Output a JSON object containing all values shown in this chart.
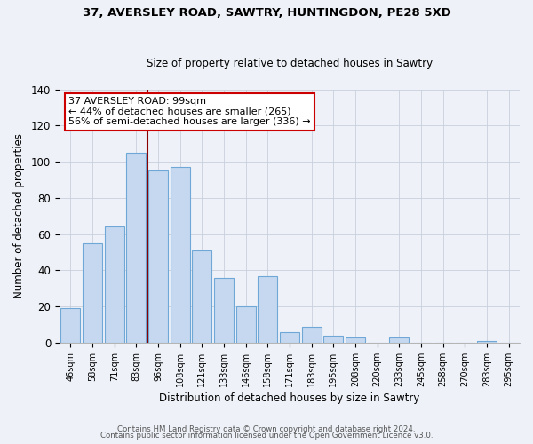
{
  "title1": "37, AVERSLEY ROAD, SAWTRY, HUNTINGDON, PE28 5XD",
  "title2": "Size of property relative to detached houses in Sawtry",
  "xlabel": "Distribution of detached houses by size in Sawtry",
  "ylabel": "Number of detached properties",
  "bar_labels": [
    "46sqm",
    "58sqm",
    "71sqm",
    "83sqm",
    "96sqm",
    "108sqm",
    "121sqm",
    "133sqm",
    "146sqm",
    "158sqm",
    "171sqm",
    "183sqm",
    "195sqm",
    "208sqm",
    "220sqm",
    "233sqm",
    "245sqm",
    "258sqm",
    "270sqm",
    "283sqm",
    "295sqm"
  ],
  "bar_values": [
    19,
    55,
    64,
    105,
    95,
    97,
    51,
    36,
    20,
    37,
    6,
    9,
    4,
    3,
    0,
    3,
    0,
    0,
    0,
    1,
    0
  ],
  "bar_color": "#c5d8f0",
  "bar_edge_color": "#6fa8d6",
  "vline_x_pos": 3.5,
  "vline_color": "#8b0000",
  "annotation_title": "37 AVERSLEY ROAD: 99sqm",
  "annotation_line1": "← 44% of detached houses are smaller (265)",
  "annotation_line2": "56% of semi-detached houses are larger (336) →",
  "annotation_box_color": "#ffffff",
  "annotation_box_edge": "#cc0000",
  "ylim": [
    0,
    140
  ],
  "yticks": [
    0,
    20,
    40,
    60,
    80,
    100,
    120,
    140
  ],
  "footer1": "Contains HM Land Registry data © Crown copyright and database right 2024.",
  "footer2": "Contains public sector information licensed under the Open Government Licence v3.0.",
  "bg_color": "#eef2f8"
}
